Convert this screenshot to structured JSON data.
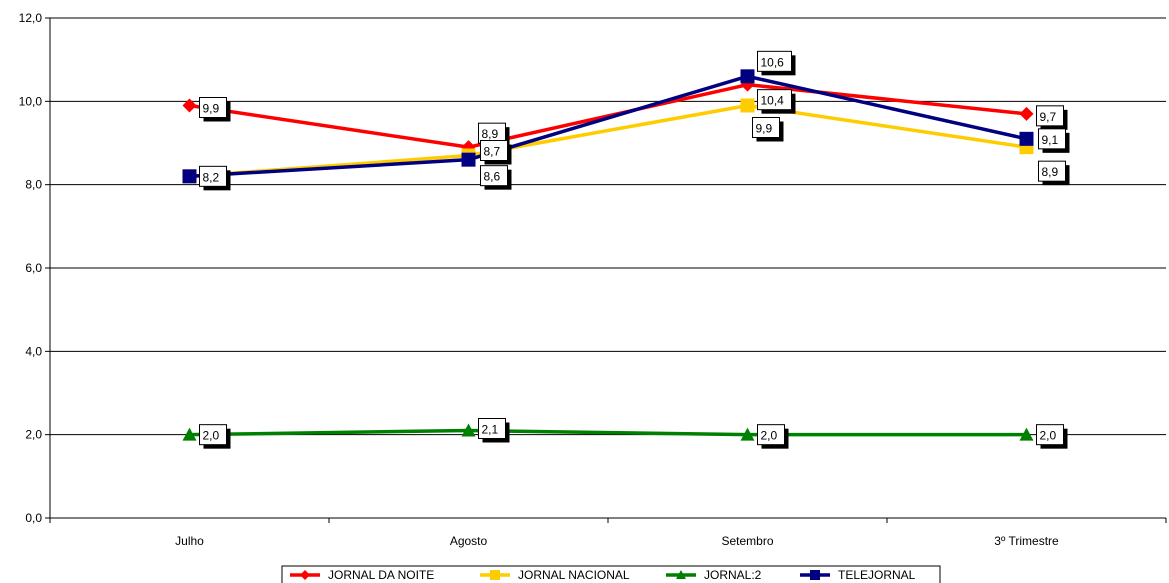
{
  "chart_data": {
    "type": "line",
    "categories": [
      "Julho",
      "Agosto",
      "Setembro",
      "3º Trimestre"
    ],
    "ylim": [
      0,
      12
    ],
    "yticks": [
      "0,0",
      "2,0",
      "4,0",
      "6,0",
      "8,0",
      "10,0",
      "12,0"
    ],
    "grid": true,
    "legend_position": "bottom",
    "series": [
      {
        "name": "JORNAL DA NOITE",
        "color": "#ff0000",
        "marker": "diamond",
        "values": [
          9.9,
          8.9,
          10.4,
          9.7
        ],
        "labels": [
          "9,9",
          "8,9",
          "10,4",
          "9,7"
        ]
      },
      {
        "name": "JORNAL NACIONAL",
        "color": "#ffcc00",
        "marker": "square",
        "values": [
          8.2,
          8.7,
          9.9,
          8.9
        ],
        "labels": [
          "",
          "8,7",
          "9,9",
          "8,9"
        ]
      },
      {
        "name": "JORNAL:2",
        "color": "#008000",
        "marker": "triangle",
        "values": [
          2.0,
          2.1,
          2.0,
          2.0
        ],
        "labels": [
          "2,0",
          "2,1",
          "2,0",
          "2,0"
        ]
      },
      {
        "name": "TELEJORNAL",
        "color": "#000080",
        "marker": "square",
        "values": [
          8.2,
          8.6,
          10.6,
          9.1
        ],
        "labels": [
          "8,2",
          "8,6",
          "10,6",
          "9,1"
        ]
      }
    ]
  }
}
